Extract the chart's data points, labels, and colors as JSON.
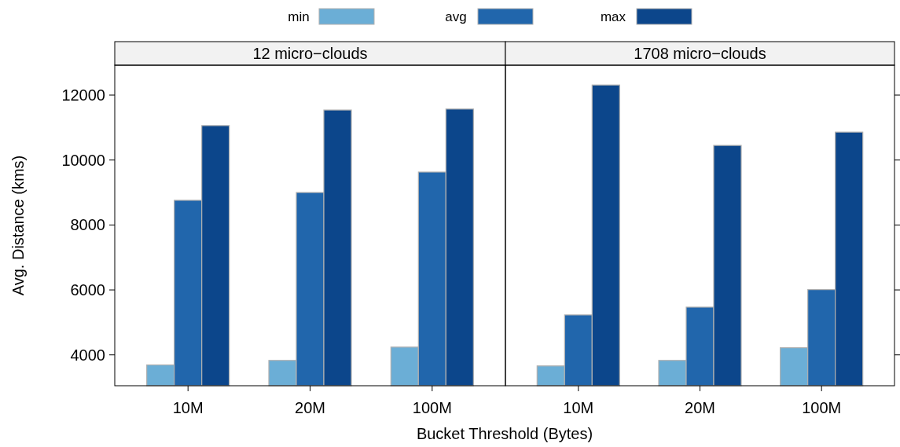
{
  "chart_data": [
    {
      "type": "bar",
      "title": "12 micro−clouds",
      "ylabel": "Avg. Distance (kms)",
      "xlabel": "Bucket Threshold (Bytes)",
      "categories": [
        "10M",
        "20M",
        "100M"
      ],
      "legend": "top",
      "ylim": [
        3050,
        12920
      ],
      "yticks": [
        4000,
        6000,
        8000,
        10000,
        12000
      ],
      "series": [
        {
          "name": "min",
          "color": "#6baed6",
          "values": [
            3690,
            3830,
            4240
          ]
        },
        {
          "name": "avg",
          "color": "#2166ac",
          "values": [
            8760,
            9000,
            9630
          ]
        },
        {
          "name": "max",
          "color": "#0c468b",
          "values": [
            11060,
            11540,
            11570
          ]
        }
      ]
    },
    {
      "type": "bar",
      "title": "1708 micro−clouds",
      "categories": [
        "10M",
        "20M",
        "100M"
      ],
      "ylim": [
        3050,
        12920
      ],
      "yticks": [
        4000,
        6000,
        8000,
        10000,
        12000
      ],
      "tick_labels": "x",
      "series": [
        {
          "color": "#6baed6",
          "values": [
            3660,
            3830,
            4220
          ]
        },
        {
          "color": "#2166ac",
          "values": [
            5230,
            5470,
            6010
          ]
        },
        {
          "color": "#0c468b",
          "values": [
            12310,
            10450,
            10860
          ]
        }
      ]
    }
  ]
}
